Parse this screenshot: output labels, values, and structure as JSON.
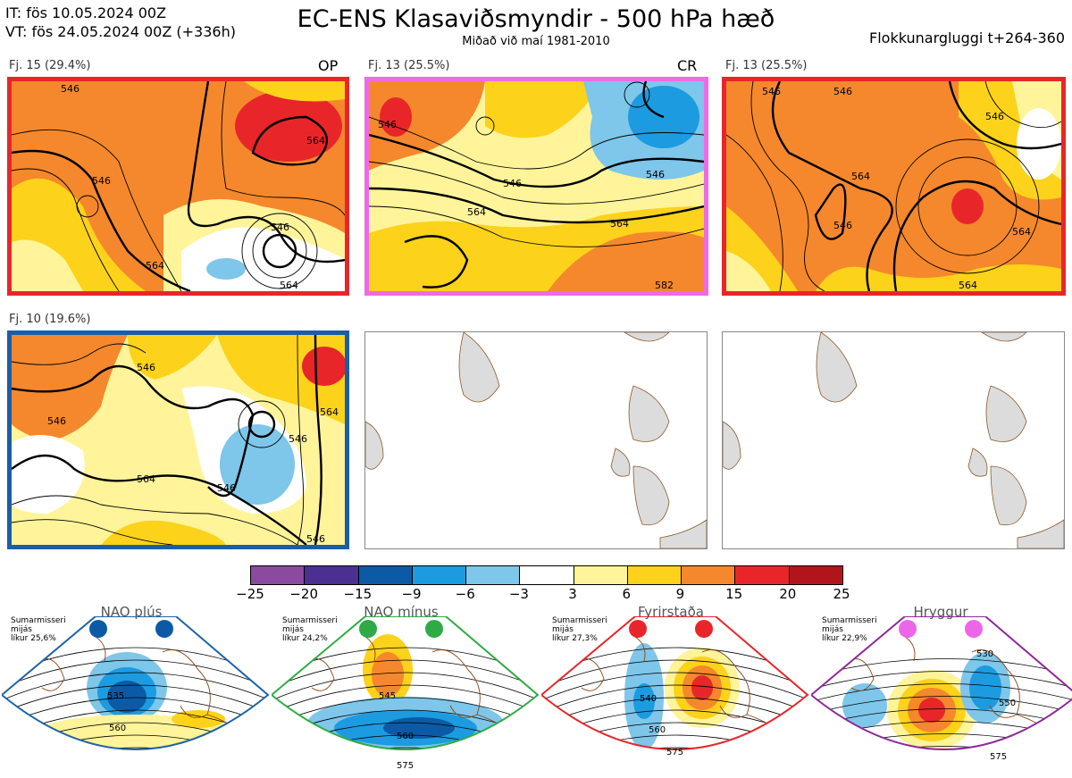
{
  "header": {
    "init_time": "IT: fös 10.05.2024 00Z",
    "valid_time": "VT: fös 24.05.2024 00Z  (+336h)",
    "title": "EC-ENS Klasaviðsmyndir - 500 hPa hæð",
    "subtitle": "Miðað við maí 1981-2010",
    "window": "Flokkunargluggi t+264-360"
  },
  "clusters": [
    {
      "label": "Fj. 15 (29.4%)",
      "tag": "OP",
      "border_color": "#e8262a",
      "contours": [
        "546",
        "546",
        "546",
        "564",
        "564",
        "564"
      ]
    },
    {
      "label": "Fj. 13 (25.5%)",
      "tag": "CR",
      "border_color": "#f06ae6",
      "contours": [
        "546",
        "546",
        "564",
        "564",
        "546",
        "582"
      ]
    },
    {
      "label": "Fj. 13 (25.5%)",
      "tag": "",
      "border_color": "#e8262a",
      "contours": [
        "546",
        "546",
        "546",
        "546",
        "564",
        "564",
        "564"
      ]
    },
    {
      "label": "Fj. 10 (19.6%)",
      "tag": "",
      "border_color": "#1a5ea8",
      "contours": [
        "546",
        "546",
        "546",
        "546",
        "564",
        "564",
        "546"
      ]
    }
  ],
  "colorbar": {
    "ticks": [
      "−25",
      "−20",
      "−15",
      "−9",
      "−6",
      "−3",
      "3",
      "6",
      "9",
      "15",
      "20",
      "25"
    ],
    "colors": [
      "#8a4a9e",
      "#4b2f91",
      "#0c5aa6",
      "#1c9be0",
      "#7ec6ea",
      "#ffffff",
      "#fff49a",
      "#fcd21b",
      "#f5882c",
      "#e8262a",
      "#b2141b"
    ]
  },
  "regimes": [
    {
      "name": "NAO plús",
      "season": "Sumarmisseri",
      "mean": "mijás",
      "prob": "líkur 25,6%",
      "dot_color": "#0c5aa6",
      "border_color": "#1f63a8",
      "labels": [
        "535",
        "560"
      ]
    },
    {
      "name": "NAO mínus",
      "season": "Sumarmisseri",
      "mean": "mijás",
      "prob": "líkur 24,2%",
      "dot_color": "#2eab46",
      "border_color": "#2eab46",
      "labels": [
        "545",
        "560",
        "575"
      ]
    },
    {
      "name": "Fyrirstaða",
      "season": "Sumarmisseri",
      "mean": "mijás",
      "prob": "líkur 27,3%",
      "dot_color": "#e8262a",
      "border_color": "#e8262a",
      "labels": [
        "540",
        "560",
        "575"
      ]
    },
    {
      "name": "Hryggur",
      "season": "Sumarmisseri",
      "mean": "mijás",
      "prob": "líkur 22,9%",
      "dot_color": "#ec66e8",
      "border_color": "#8c2a9a",
      "labels": [
        "530",
        "550",
        "575"
      ]
    }
  ]
}
